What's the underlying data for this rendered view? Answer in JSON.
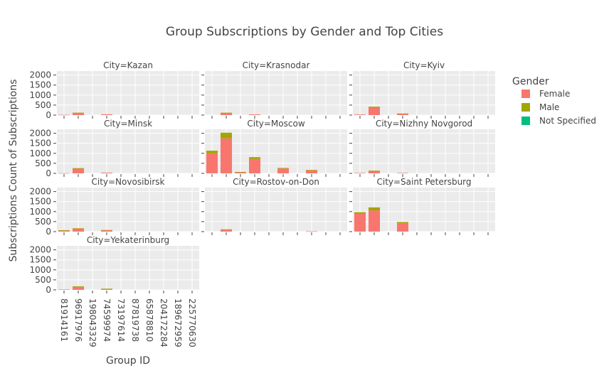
{
  "chart_data": {
    "type": "bar",
    "stacked": true,
    "facet_wrap": 3,
    "title": "Group Subscriptions by Gender and Top Cities",
    "xlabel": "Group ID",
    "ylabel": "Subscriptions Count of Subscriptions",
    "ylim": [
      0,
      2200
    ],
    "yticks": [
      0,
      500,
      1000,
      1500,
      2000
    ],
    "grid": true,
    "legend": {
      "title": "Gender",
      "placement": "right"
    },
    "categories": [
      "81914161",
      "96917976",
      "198043329",
      "74599974",
      "73197614",
      "87819738",
      "65878810",
      "204172284",
      "189672959",
      "225770630"
    ],
    "colors": {
      "Female": "#F8766D",
      "Male": "#A3A500",
      "Not Specified": "#00BF7D"
    },
    "facets": [
      {
        "label": "City=Kazan",
        "series": [
          {
            "name": "Female",
            "values": [
              15,
              110,
              0,
              40,
              0,
              0,
              0,
              0,
              0,
              0
            ]
          },
          {
            "name": "Male",
            "values": [
              0,
              10,
              0,
              0,
              0,
              0,
              0,
              0,
              0,
              0
            ]
          },
          {
            "name": "Not Specified",
            "values": [
              0,
              0,
              0,
              0,
              0,
              0,
              0,
              0,
              0,
              0
            ]
          }
        ]
      },
      {
        "label": "City=Krasnodar",
        "series": [
          {
            "name": "Female",
            "values": [
              0,
              110,
              0,
              35,
              0,
              0,
              0,
              0,
              0,
              0
            ]
          },
          {
            "name": "Male",
            "values": [
              0,
              10,
              0,
              0,
              0,
              0,
              0,
              0,
              0,
              0
            ]
          },
          {
            "name": "Not Specified",
            "values": [
              0,
              0,
              0,
              0,
              0,
              0,
              0,
              0,
              0,
              0
            ]
          }
        ]
      },
      {
        "label": "City=Kyiv",
        "series": [
          {
            "name": "Female",
            "values": [
              30,
              370,
              0,
              70,
              0,
              0,
              0,
              0,
              0,
              0
            ]
          },
          {
            "name": "Male",
            "values": [
              0,
              50,
              0,
              10,
              0,
              0,
              0,
              0,
              0,
              0
            ]
          },
          {
            "name": "Not Specified",
            "values": [
              0,
              0,
              0,
              0,
              0,
              0,
              0,
              0,
              0,
              0
            ]
          }
        ]
      },
      {
        "label": "City=Minsk",
        "series": [
          {
            "name": "Female",
            "values": [
              10,
              230,
              0,
              35,
              0,
              0,
              0,
              0,
              0,
              0
            ]
          },
          {
            "name": "Male",
            "values": [
              0,
              30,
              0,
              0,
              0,
              0,
              0,
              0,
              0,
              0
            ]
          },
          {
            "name": "Not Specified",
            "values": [
              0,
              0,
              0,
              0,
              0,
              0,
              0,
              0,
              0,
              0
            ]
          }
        ]
      },
      {
        "label": "City=Moscow",
        "series": [
          {
            "name": "Female",
            "values": [
              1000,
              1750,
              60,
              720,
              0,
              240,
              0,
              140,
              0,
              0
            ]
          },
          {
            "name": "Male",
            "values": [
              130,
              280,
              10,
              90,
              0,
              30,
              0,
              30,
              0,
              0
            ]
          },
          {
            "name": "Not Specified",
            "values": [
              0,
              0,
              0,
              0,
              0,
              0,
              0,
              0,
              0,
              0
            ]
          }
        ]
      },
      {
        "label": "City=Nizhny Novgorod",
        "series": [
          {
            "name": "Female",
            "values": [
              20,
              120,
              0,
              20,
              0,
              0,
              0,
              0,
              0,
              0
            ]
          },
          {
            "name": "Male",
            "values": [
              0,
              20,
              0,
              0,
              0,
              0,
              0,
              0,
              0,
              0
            ]
          },
          {
            "name": "Not Specified",
            "values": [
              0,
              0,
              0,
              0,
              0,
              0,
              0,
              0,
              0,
              0
            ]
          }
        ]
      },
      {
        "label": "City=Novosibirsk",
        "series": [
          {
            "name": "Female",
            "values": [
              60,
              150,
              0,
              70,
              0,
              0,
              0,
              0,
              0,
              0
            ]
          },
          {
            "name": "Male",
            "values": [
              10,
              20,
              0,
              10,
              0,
              0,
              0,
              0,
              0,
              0
            ]
          },
          {
            "name": "Not Specified",
            "values": [
              0,
              0,
              0,
              0,
              0,
              0,
              0,
              0,
              0,
              0
            ]
          }
        ]
      },
      {
        "label": "City=Rostov-on-Don",
        "series": [
          {
            "name": "Female",
            "values": [
              0,
              100,
              0,
              0,
              0,
              0,
              0,
              15,
              0,
              0
            ]
          },
          {
            "name": "Male",
            "values": [
              0,
              15,
              0,
              0,
              0,
              0,
              0,
              0,
              0,
              0
            ]
          },
          {
            "name": "Not Specified",
            "values": [
              0,
              0,
              0,
              0,
              0,
              0,
              0,
              0,
              0,
              0
            ]
          }
        ]
      },
      {
        "label": "City=Saint Petersburg",
        "series": [
          {
            "name": "Female",
            "values": [
              890,
              1060,
              0,
              420,
              0,
              0,
              0,
              0,
              0,
              0
            ]
          },
          {
            "name": "Male",
            "values": [
              80,
              150,
              0,
              60,
              0,
              0,
              0,
              0,
              0,
              0
            ]
          },
          {
            "name": "Not Specified",
            "values": [
              0,
              0,
              0,
              0,
              0,
              0,
              0,
              0,
              0,
              0
            ]
          }
        ]
      },
      {
        "label": "City=Yekaterinburg",
        "series": [
          {
            "name": "Female",
            "values": [
              20,
              150,
              0,
              50,
              0,
              0,
              0,
              0,
              0,
              0
            ]
          },
          {
            "name": "Male",
            "values": [
              0,
              30,
              0,
              10,
              0,
              0,
              0,
              0,
              0,
              0
            ]
          },
          {
            "name": "Not Specified",
            "values": [
              0,
              0,
              0,
              0,
              0,
              0,
              0,
              0,
              0,
              0
            ]
          }
        ]
      }
    ]
  }
}
